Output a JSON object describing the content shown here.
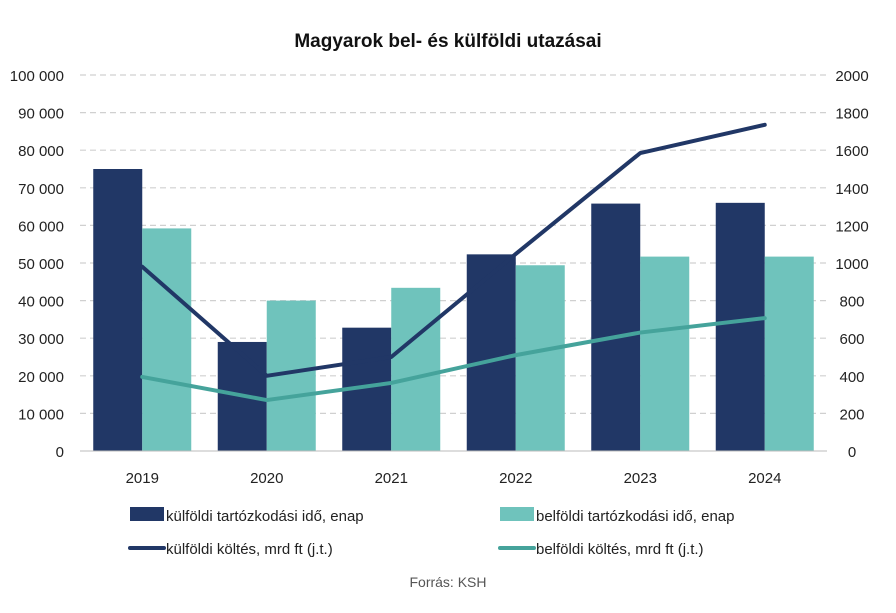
{
  "chart_data": {
    "type": "bar",
    "title": "Magyarok bel- és külföldi utazásai",
    "categories": [
      "2019",
      "2020",
      "2021",
      "2022",
      "2023",
      "2024"
    ],
    "ylim": [
      0,
      100000
    ],
    "y2lim": [
      0,
      2000
    ],
    "yticks": [
      "0",
      "10 000",
      "20 000",
      "30 000",
      "40 000",
      "50 000",
      "60 000",
      "70 000",
      "80 000",
      "90 000",
      "100 000"
    ],
    "y2ticks": [
      "0",
      "200",
      "400",
      "600",
      "800",
      "1000",
      "1200",
      "1400",
      "1600",
      "1800",
      "2000"
    ],
    "grid": true,
    "legend_position": "bottom",
    "series": [
      {
        "name": "külföldi tartózkodási idő, enap",
        "type": "bar",
        "axis": "left",
        "color": "#213766",
        "values": [
          75000,
          29000,
          32800,
          52300,
          65800,
          66000
        ]
      },
      {
        "name": "belföldi tartózkodási idő, enap",
        "type": "bar",
        "axis": "left",
        "color": "#6fc3bc",
        "values": [
          59200,
          40000,
          43400,
          49400,
          51700,
          51700
        ]
      },
      {
        "name": "külföldi költés, mrd ft (j.t.)",
        "type": "line",
        "axis": "right",
        "color": "#213766",
        "values": [
          980,
          400,
          500,
          1048,
          1585,
          1735
        ]
      },
      {
        "name": "belföldi költés, mrd ft (j.t.)",
        "type": "line",
        "axis": "right",
        "color": "#45a39b",
        "values": [
          394,
          271,
          362,
          510,
          630,
          707
        ]
      }
    ],
    "source": "Forrás: KSH"
  }
}
